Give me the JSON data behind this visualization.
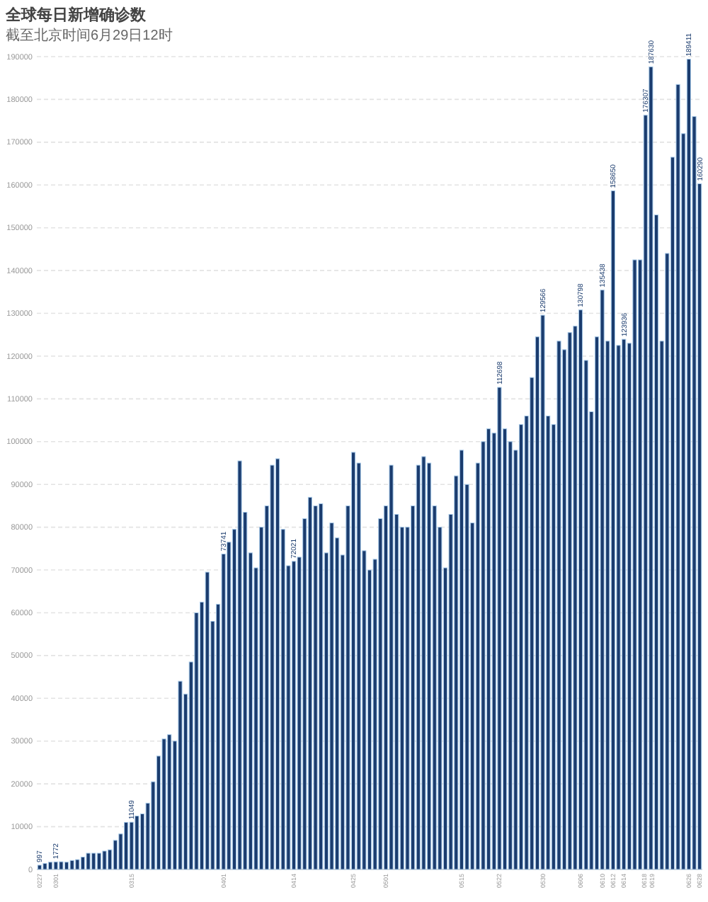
{
  "chart_data": {
    "type": "bar",
    "title": "全球每日新增确诊数",
    "subtitle": "截至北京时间6月29日12时",
    "categories": [
      "0227",
      null,
      null,
      "0301",
      null,
      null,
      null,
      null,
      null,
      null,
      null,
      null,
      null,
      null,
      null,
      null,
      null,
      "0315",
      null,
      null,
      null,
      null,
      null,
      null,
      null,
      null,
      null,
      null,
      null,
      null,
      null,
      null,
      null,
      null,
      "0401",
      null,
      null,
      null,
      null,
      null,
      null,
      null,
      null,
      null,
      null,
      null,
      null,
      "0414",
      null,
      null,
      null,
      null,
      null,
      null,
      null,
      null,
      null,
      null,
      "0425",
      null,
      null,
      null,
      null,
      null,
      "0501",
      null,
      null,
      null,
      null,
      null,
      null,
      null,
      null,
      null,
      null,
      null,
      null,
      null,
      "0515",
      null,
      null,
      null,
      null,
      null,
      null,
      "0522",
      null,
      null,
      null,
      null,
      null,
      null,
      null,
      "0530",
      null,
      null,
      null,
      null,
      null,
      null,
      "0606",
      null,
      null,
      null,
      "0610",
      null,
      "0612",
      null,
      "0614",
      null,
      null,
      null,
      "0618",
      "0619",
      null,
      null,
      null,
      null,
      null,
      null,
      "0626",
      null,
      "0628"
    ],
    "values": [
      997,
      1400,
      1700,
      1772,
      1800,
      1700,
      2100,
      2300,
      2900,
      3800,
      3800,
      3800,
      4300,
      4600,
      6800,
      8300,
      11000,
      11049,
      12500,
      13000,
      15500,
      20500,
      26500,
      30500,
      31500,
      30000,
      44000,
      41000,
      48500,
      60000,
      62500,
      69500,
      58000,
      62000,
      73741,
      76500,
      79500,
      95500,
      83500,
      74000,
      70500,
      80000,
      85000,
      94500,
      96000,
      79500,
      71000,
      72021,
      73000,
      82000,
      87000,
      85000,
      85500,
      74000,
      81000,
      77500,
      73500,
      85000,
      97500,
      95000,
      74500,
      70000,
      72500,
      82000,
      85000,
      94500,
      83000,
      80000,
      80000,
      85000,
      94500,
      96500,
      95000,
      85000,
      80000,
      70500,
      83000,
      92000,
      98000,
      90000,
      81000,
      95000,
      100000,
      103000,
      102000,
      112698,
      103000,
      100000,
      98000,
      104000,
      106000,
      115000,
      124500,
      129566,
      106000,
      104000,
      123500,
      121500,
      125500,
      127000,
      130798,
      119000,
      107000,
      124500,
      135438,
      123500,
      158650,
      122500,
      123936,
      123000,
      142500,
      142500,
      176307,
      187630,
      153000,
      123500,
      144000,
      166500,
      183500,
      172000,
      189411,
      176000,
      160290
    ],
    "value_labels": [
      "997",
      null,
      null,
      "1772",
      null,
      null,
      null,
      null,
      null,
      null,
      null,
      null,
      null,
      null,
      null,
      null,
      null,
      "11049",
      null,
      null,
      null,
      null,
      null,
      null,
      null,
      null,
      null,
      null,
      null,
      null,
      null,
      null,
      null,
      null,
      "73741",
      null,
      null,
      null,
      null,
      null,
      null,
      null,
      null,
      null,
      null,
      null,
      null,
      "72021",
      null,
      null,
      null,
      null,
      null,
      null,
      null,
      null,
      null,
      null,
      null,
      null,
      null,
      null,
      null,
      null,
      null,
      null,
      null,
      null,
      null,
      null,
      null,
      null,
      null,
      null,
      null,
      null,
      null,
      null,
      null,
      null,
      null,
      null,
      null,
      null,
      null,
      "112698",
      null,
      null,
      null,
      null,
      null,
      null,
      null,
      "129566",
      null,
      null,
      null,
      null,
      null,
      null,
      "130798",
      null,
      null,
      null,
      "135438",
      null,
      "158650",
      null,
      "123936",
      null,
      null,
      null,
      "176307",
      "187630",
      null,
      null,
      null,
      null,
      null,
      null,
      "189411",
      null,
      "160290"
    ],
    "color": "#1b3c6e",
    "ylim": [
      0,
      190000
    ],
    "yticks": [
      0,
      10000,
      20000,
      30000,
      40000,
      50000,
      60000,
      70000,
      80000,
      90000,
      100000,
      110000,
      120000,
      130000,
      140000,
      150000,
      160000,
      170000,
      180000,
      190000
    ],
    "grid": "y"
  }
}
